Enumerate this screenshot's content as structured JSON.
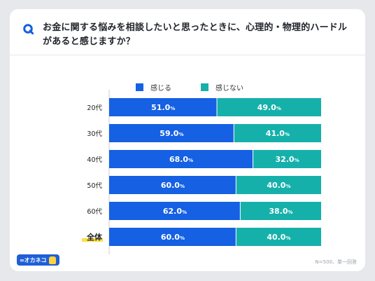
{
  "header": {
    "title": "お金に関する悩みを相談したいと思ったときに、心理的・物理的ハードルがあると感じますか？"
  },
  "footer": {
    "note": "N=500、単一回答",
    "brand": "∞オカネコ"
  },
  "colors": {
    "yes": "#1560e3",
    "no": "#16b0ab",
    "accent": "#1f5fd6",
    "highlight": "#fde047"
  },
  "chart_data": {
    "type": "bar",
    "orientation": "horizontal",
    "stacked": true,
    "percent": true,
    "categories": [
      "20代",
      "30代",
      "40代",
      "50代",
      "60代",
      "全体"
    ],
    "series": [
      {
        "name": "感じる",
        "values": [
          51.0,
          59.0,
          68.0,
          60.0,
          62.0,
          60.0
        ]
      },
      {
        "name": "感じない",
        "values": [
          49.0,
          41.0,
          32.0,
          40.0,
          38.0,
          40.0
        ]
      }
    ],
    "unit": "%",
    "xlim": [
      0,
      100
    ],
    "legend": "top-center",
    "grid": false,
    "highlighted_category": "全体"
  }
}
